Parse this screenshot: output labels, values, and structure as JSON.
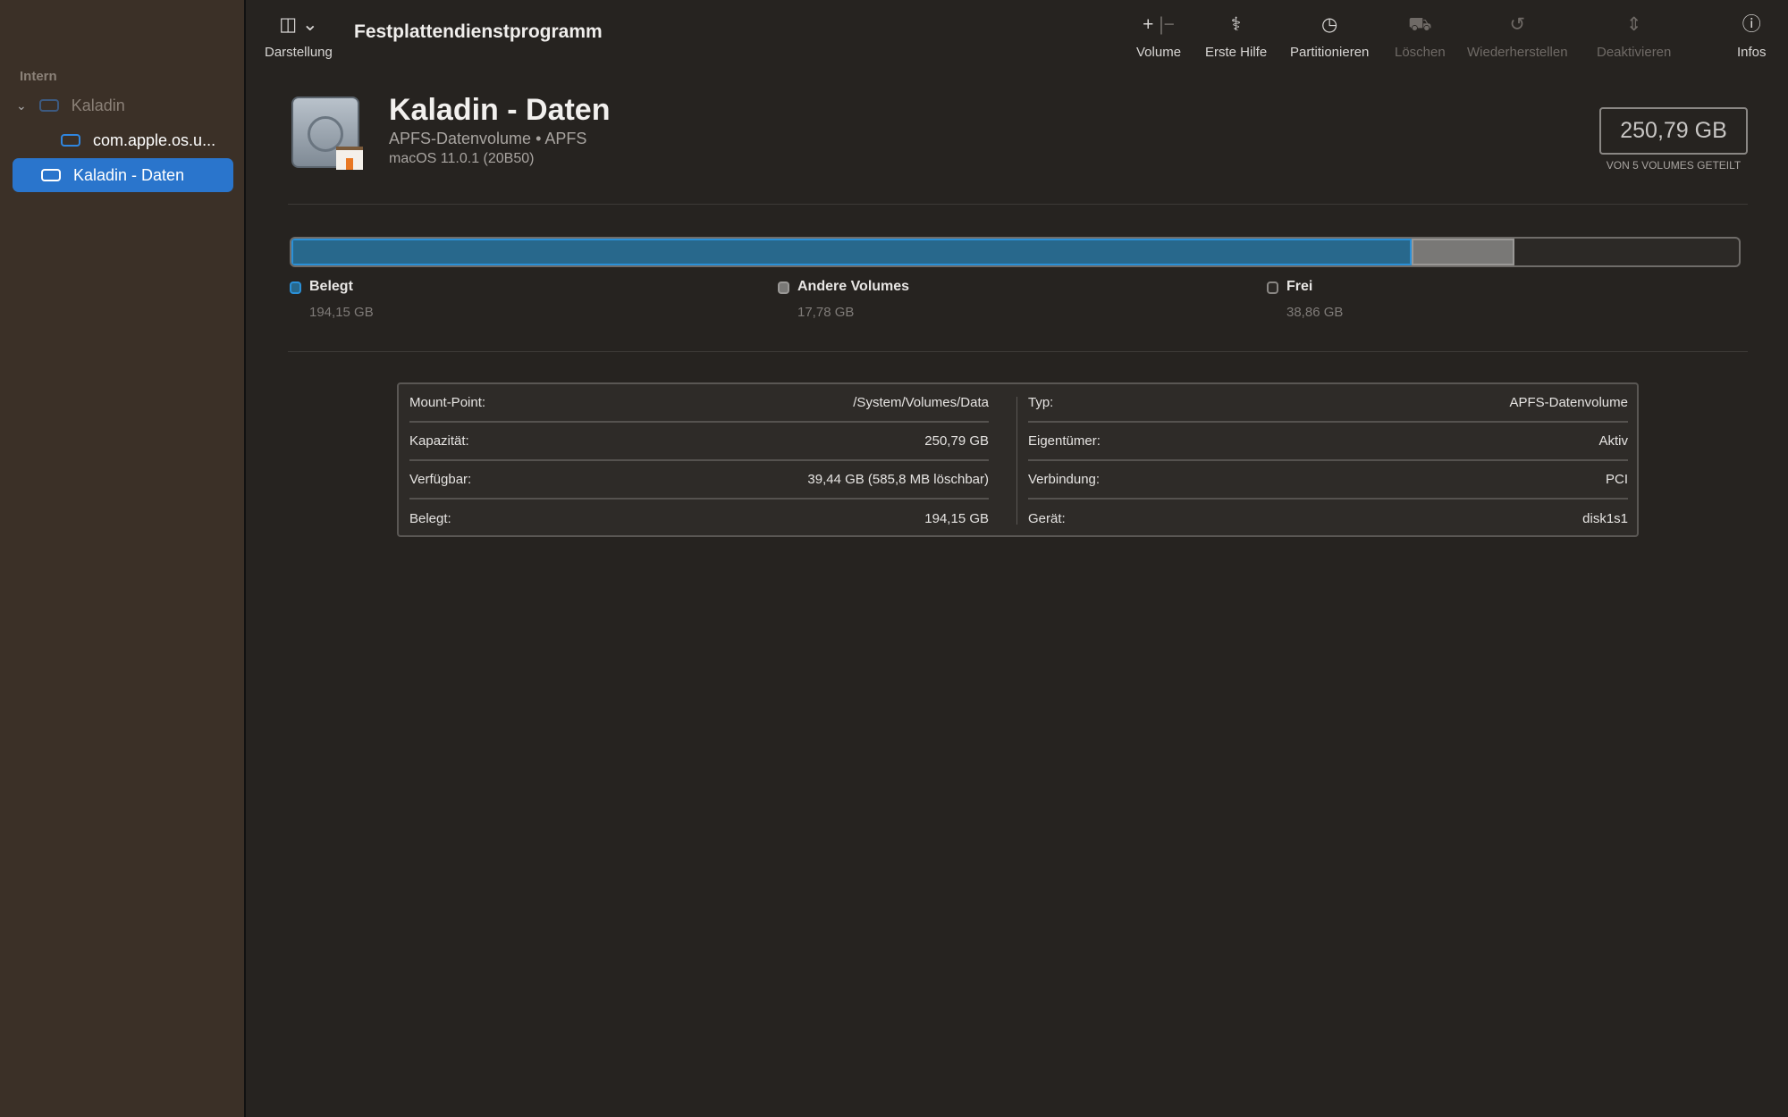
{
  "sidebar": {
    "section": "Intern",
    "items": [
      {
        "label": "Kaladin",
        "icon": "internal-disk-icon"
      },
      {
        "label": "com.apple.os.u...",
        "icon": "volume-icon"
      },
      {
        "label": "Kaladin - Daten",
        "icon": "volume-icon",
        "selected": true
      }
    ]
  },
  "toolbar": {
    "title": "Festplattendienstprogramm",
    "view_label": "Darstellung",
    "buttons": [
      {
        "label": "Volume",
        "icon": "plus-minus-icon",
        "enabled": true
      },
      {
        "label": "Erste Hilfe",
        "icon": "stethoscope-icon",
        "enabled": true
      },
      {
        "label": "Partitionieren",
        "icon": "pie-chart-icon",
        "enabled": true
      },
      {
        "label": "Löschen",
        "icon": "erase-disk-icon",
        "enabled": false
      },
      {
        "label": "Wiederherstellen",
        "icon": "restore-icon",
        "enabled": false
      },
      {
        "label": "Deaktivieren",
        "icon": "unmount-icon",
        "enabled": false
      },
      {
        "label": "Infos",
        "icon": "info-icon",
        "enabled": true
      }
    ]
  },
  "volume": {
    "name": "Kaladin - Daten",
    "subtitle": "APFS-Datenvolume • APFS",
    "os": "macOS 11.0.1 (20B50)",
    "capacity": "250,79 GB",
    "shared_note": "VON 5 VOLUMES GETEILT"
  },
  "usage": {
    "total_gb": 250.79,
    "segments": [
      {
        "label": "Belegt",
        "value": "194,15 GB",
        "gb": 194.15,
        "color": "#28688c"
      },
      {
        "label": "Andere Volumes",
        "value": "17,78 GB",
        "gb": 17.78,
        "color": "#797876"
      },
      {
        "label": "Frei",
        "value": "38,86 GB",
        "gb": 38.86,
        "color": "#2c2926"
      }
    ]
  },
  "info": {
    "left": [
      {
        "k": "Mount-Point:",
        "v": "/System/Volumes/Data"
      },
      {
        "k": "Kapazität:",
        "v": "250,79 GB"
      },
      {
        "k": "Verfügbar:",
        "v": "39,44 GB (585,8 MB löschbar)"
      },
      {
        "k": "Belegt:",
        "v": "194,15 GB"
      }
    ],
    "right": [
      {
        "k": "Typ:",
        "v": "APFS-Datenvolume"
      },
      {
        "k": "Eigentümer:",
        "v": "Aktiv"
      },
      {
        "k": "Verbindung:",
        "v": "PCI"
      },
      {
        "k": "Gerät:",
        "v": "disk1s1"
      }
    ]
  }
}
